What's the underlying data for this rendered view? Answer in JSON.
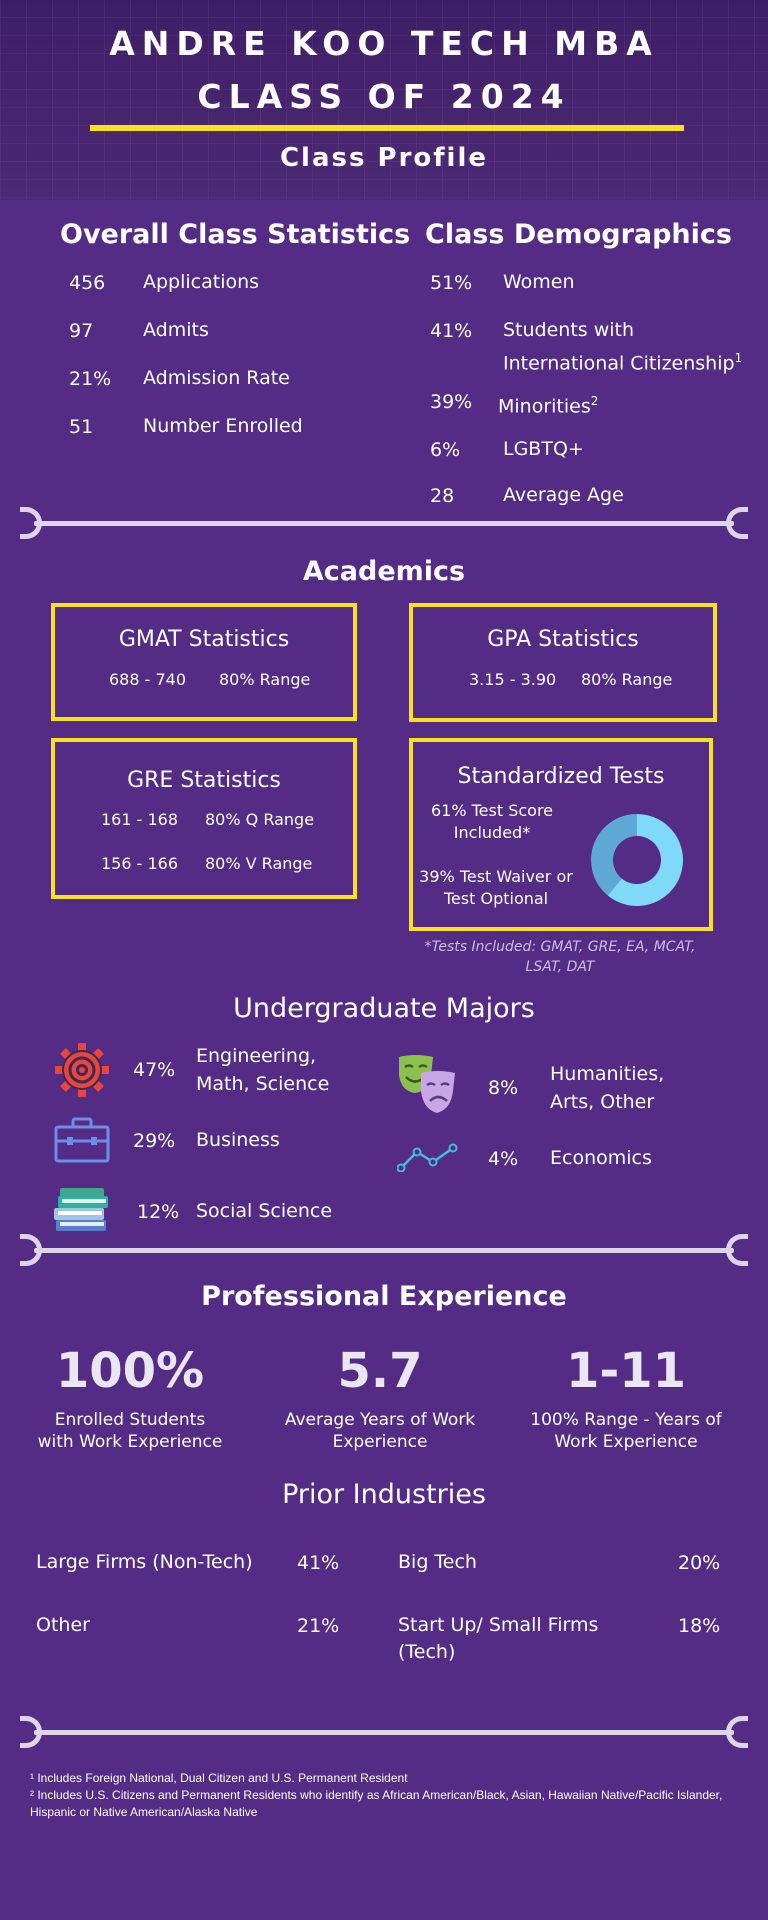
{
  "header": {
    "title_line1": "ANDRE KOO TECH MBA",
    "title_line2": "CLASS OF 2024",
    "subtitle": "Class Profile"
  },
  "overall": {
    "title": "Overall Class Statistics",
    "items": [
      {
        "num": "456",
        "label": "Applications"
      },
      {
        "num": "97",
        "label": "Admits"
      },
      {
        "num": "21%",
        "label": "Admission Rate"
      },
      {
        "num": "51",
        "label": "Number Enrolled"
      }
    ]
  },
  "demographics": {
    "title": "Class Demographics",
    "items": [
      {
        "num": "51%",
        "label": "Women"
      },
      {
        "num": "41%",
        "label_line1": "Students with",
        "label_line2": "International Citizenship",
        "sup": "1"
      },
      {
        "num": "39%",
        "label": "Minorities",
        "sup": "2"
      },
      {
        "num": "6%",
        "label": "LGBTQ+"
      },
      {
        "num": "28",
        "label": "Average Age"
      }
    ]
  },
  "academics": {
    "title": "Academics",
    "gmat": {
      "title": "GMAT Statistics",
      "range": "688 - 740",
      "range_label": "80% Range"
    },
    "gpa": {
      "title": "GPA Statistics",
      "range": "3.15 - 3.90",
      "range_label": "80% Range"
    },
    "gre": {
      "title": "GRE Statistics",
      "q_range": "161 - 168",
      "q_label": "80%  Q Range",
      "v_range": "156 - 166",
      "v_label": "80%  V Range"
    },
    "tests": {
      "title": "Standardized Tests",
      "included": "61% Test Score Included*",
      "waiver": "39% Test Waiver or Test Optional",
      "included_pct": 61,
      "waiver_pct": 39,
      "color_included": "#7fd9f8",
      "color_waiver": "#5fa8d6"
    },
    "note": "*Tests Included: GMAT, GRE, EA, MCAT, LSAT, DAT"
  },
  "majors": {
    "title": "Undergraduate Majors",
    "items": [
      {
        "icon": "gear-icon",
        "pct": "47%",
        "label_line1": "Engineering,",
        "label_line2": "Math, Science"
      },
      {
        "icon": "briefcase-icon",
        "pct": "29%",
        "label": "Business"
      },
      {
        "icon": "books-icon",
        "pct": "12%",
        "label": "Social Science"
      },
      {
        "icon": "theater-masks-icon",
        "pct": "8%",
        "label_line1": "Humanities,",
        "label_line2": "Arts, Other"
      },
      {
        "icon": "line-chart-icon",
        "pct": "4%",
        "label": "Economics"
      }
    ]
  },
  "professional": {
    "title": "Professional Experience",
    "stats": [
      {
        "value": "100%",
        "label_line1": "Enrolled Students",
        "label_line2": "with Work Experience"
      },
      {
        "value": "5.7",
        "label_line1": "Average Years of Work",
        "label_line2": "Experience"
      },
      {
        "value": "1-11",
        "label_line1": "100% Range - Years of",
        "label_line2": "Work Experience"
      }
    ]
  },
  "industries": {
    "title": "Prior Industries",
    "items": [
      {
        "label": "Large Firms (Non-Tech)",
        "pct": "41%"
      },
      {
        "label": "Big Tech",
        "pct": "20%"
      },
      {
        "label": "Other",
        "pct": "21%"
      },
      {
        "label_line1": "Start Up/ Small Firms",
        "label_line2": "(Tech)",
        "pct": "18%"
      }
    ]
  },
  "footnotes": {
    "f1": "¹ Includes Foreign National, Dual Citizen and U.S. Permanent Resident",
    "f2": "² Includes U.S. Citizens and Permanent Residents who identify as African American/Black, Asian, Hawaiian Native/Pacific Islander, Hispanic or Native American/Alaska Native"
  }
}
